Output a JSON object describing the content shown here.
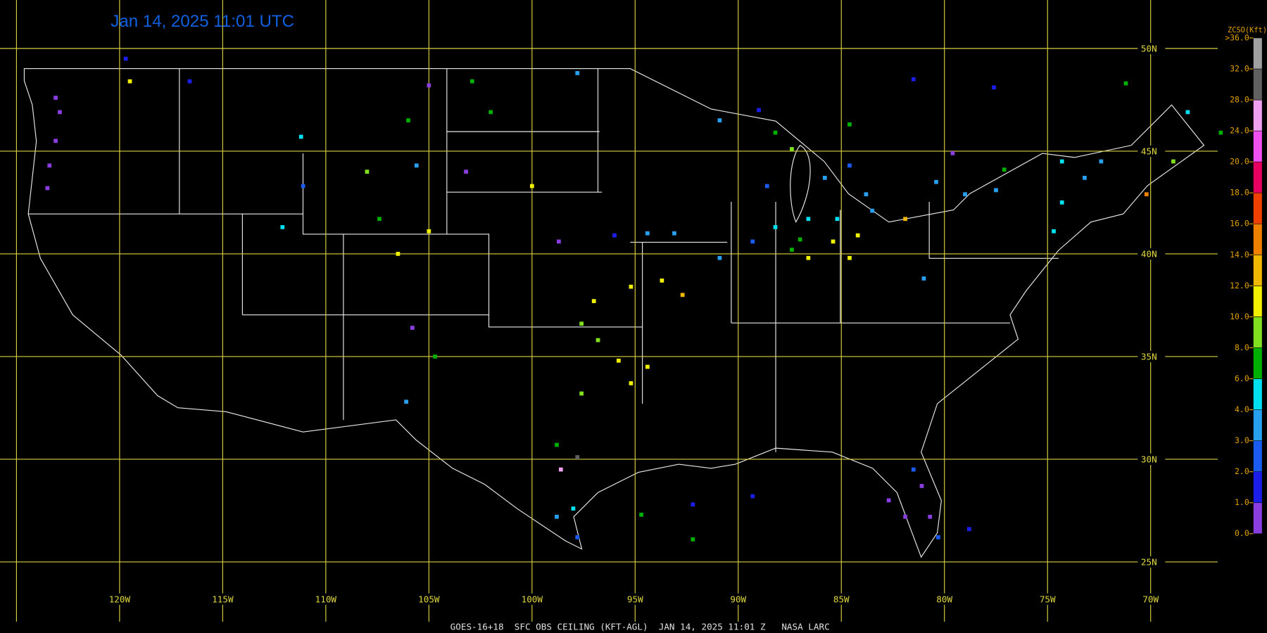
{
  "title": "Jan 14, 2025 11:01 UTC",
  "footer": "GOES-16+18  SFC OBS CEILING (KFT-AGL)  JAN 14, 2025 11:01 Z   NASA LARC",
  "map": {
    "lon_lines": [
      {
        "value": -125,
        "label": null
      },
      {
        "value": -120,
        "label": "120W"
      },
      {
        "value": -115,
        "label": "115W"
      },
      {
        "value": -110,
        "label": "110W"
      },
      {
        "value": -105,
        "label": "105W"
      },
      {
        "value": -100,
        "label": "100W"
      },
      {
        "value": -95,
        "label": "95W"
      },
      {
        "value": -90,
        "label": "90W"
      },
      {
        "value": -85,
        "label": "85W"
      },
      {
        "value": -80,
        "label": "80W"
      },
      {
        "value": -75,
        "label": "75W"
      },
      {
        "value": -70,
        "label": "70W"
      }
    ],
    "lat_lines": [
      {
        "value": 50,
        "label": "50N"
      },
      {
        "value": 45,
        "label": "45N"
      },
      {
        "value": 40,
        "label": "40N"
      },
      {
        "value": 35,
        "label": "35N"
      },
      {
        "value": 30,
        "label": "30N"
      },
      {
        "value": 25,
        "label": "25N"
      }
    ]
  },
  "colorbar": {
    "title": "ZCSO(Kft)",
    "ticks": [
      {
        "value": 0,
        "label": "0.0"
      },
      {
        "value": 1,
        "label": "1.0"
      },
      {
        "value": 2,
        "label": "2.0"
      },
      {
        "value": 3,
        "label": "3.0"
      },
      {
        "value": 4,
        "label": "4.0"
      },
      {
        "value": 6,
        "label": "6.0"
      },
      {
        "value": 8,
        "label": "8.0"
      },
      {
        "value": 10,
        "label": "10.0"
      },
      {
        "value": 12,
        "label": "12.0"
      },
      {
        "value": 14,
        "label": "14.0"
      },
      {
        "value": 16,
        "label": "16.0"
      },
      {
        "value": 18,
        "label": "18.0"
      },
      {
        "value": 20,
        "label": "20.0"
      },
      {
        "value": 24,
        "label": "24.0"
      },
      {
        "value": 28,
        "label": "28.0"
      },
      {
        "value": 32,
        "label": "32.0"
      },
      {
        "value": 36,
        "label": ">36.0"
      }
    ],
    "colors": [
      "#8a3ee0",
      "#1a1ee8",
      "#1a5cf0",
      "#28a0f0",
      "#00e0f0",
      "#00b000",
      "#80e020",
      "#f0f000",
      "#f0b800",
      "#f08000",
      "#f04000",
      "#e80060",
      "#f050f0",
      "#f0a0f0",
      "#606060",
      "#a0a0a0"
    ]
  },
  "stations": [
    [
      -123.1,
      47.6,
      0.5
    ],
    [
      -122.9,
      46.9,
      0.5
    ],
    [
      -123.1,
      45.5,
      0.8
    ],
    [
      -123.4,
      44.3,
      0.7
    ],
    [
      -123.5,
      43.2,
      0.5
    ],
    [
      -119.5,
      48.4,
      11
    ],
    [
      -119.7,
      49.5,
      1.5
    ],
    [
      -116.6,
      48.4,
      1.5
    ],
    [
      -111.2,
      45.7,
      5
    ],
    [
      -112.1,
      41.3,
      5
    ],
    [
      -111.1,
      43.3,
      2.5
    ],
    [
      -105.0,
      48.2,
      0.7
    ],
    [
      -106.0,
      46.5,
      7
    ],
    [
      -108.0,
      44.0,
      9
    ],
    [
      -105.6,
      44.3,
      3.5
    ],
    [
      -106.5,
      40.0,
      11
    ],
    [
      -105.0,
      41.1,
      11
    ],
    [
      -107.4,
      41.7,
      7
    ],
    [
      -103.2,
      44.0,
      0.7
    ],
    [
      -102.9,
      48.4,
      7
    ],
    [
      -102.0,
      46.9,
      7
    ],
    [
      -97.8,
      48.8,
      3.5
    ],
    [
      -100.0,
      43.3,
      11
    ],
    [
      -98.7,
      40.6,
      0.7
    ],
    [
      -96.0,
      40.9,
      1.5
    ],
    [
      -94.4,
      41.0,
      3.5
    ],
    [
      -93.1,
      41.0,
      3.5
    ],
    [
      -105.8,
      36.4,
      0.7
    ],
    [
      -104.7,
      35.0,
      7
    ],
    [
      -106.1,
      32.8,
      3.5
    ],
    [
      -97.0,
      37.7,
      11
    ],
    [
      -95.2,
      38.4,
      11
    ],
    [
      -93.7,
      38.7,
      11
    ],
    [
      -92.7,
      38.0,
      13
    ],
    [
      -97.6,
      36.6,
      9
    ],
    [
      -96.8,
      35.8,
      9
    ],
    [
      -95.8,
      34.8,
      11
    ],
    [
      -94.4,
      34.5,
      11
    ],
    [
      -95.2,
      33.7,
      11
    ],
    [
      -97.6,
      33.2,
      9
    ],
    [
      -98.8,
      30.7,
      7
    ],
    [
      -98.6,
      29.5,
      26
    ],
    [
      -97.8,
      30.1,
      30
    ],
    [
      -98.0,
      27.6,
      5
    ],
    [
      -97.8,
      26.2,
      2
    ],
    [
      -98.8,
      27.2,
      3.5
    ],
    [
      -94.7,
      27.3,
      7
    ],
    [
      -92.2,
      27.8,
      1.5
    ],
    [
      -92.2,
      26.1,
      7
    ],
    [
      -89.3,
      28.2,
      1.5
    ],
    [
      -90.9,
      39.8,
      3.5
    ],
    [
      -89.3,
      40.6,
      2.5
    ],
    [
      -88.2,
      41.3,
      5
    ],
    [
      -87.0,
      40.7,
      7
    ],
    [
      -86.6,
      39.8,
      11
    ],
    [
      -85.4,
      40.6,
      11
    ],
    [
      -84.6,
      39.8,
      11
    ],
    [
      -84.2,
      40.9,
      11
    ],
    [
      -87.4,
      40.2,
      7
    ],
    [
      -86.6,
      41.7,
      5
    ],
    [
      -85.2,
      41.7,
      5
    ],
    [
      -83.5,
      42.1,
      3.5
    ],
    [
      -81.9,
      41.7,
      13
    ],
    [
      -85.8,
      43.7,
      3.5
    ],
    [
      -84.6,
      44.3,
      2.5
    ],
    [
      -83.8,
      42.9,
      3.5
    ],
    [
      -87.4,
      45.1,
      9
    ],
    [
      -88.6,
      43.3,
      2.5
    ],
    [
      -88.2,
      45.9,
      7
    ],
    [
      -84.6,
      46.3,
      7
    ],
    [
      -90.9,
      46.5,
      3.5
    ],
    [
      -89.0,
      47.0,
      1.5
    ],
    [
      -80.4,
      43.5,
      3.5
    ],
    [
      -79.0,
      42.9,
      3.5
    ],
    [
      -77.5,
      43.1,
      3.5
    ],
    [
      -81.0,
      38.8,
      3.5
    ],
    [
      -77.1,
      44.1,
      7
    ],
    [
      -74.3,
      44.5,
      5
    ],
    [
      -73.2,
      43.7,
      3.5
    ],
    [
      -72.4,
      44.5,
      3.5
    ],
    [
      -74.3,
      42.5,
      5
    ],
    [
      -74.7,
      41.1,
      5
    ],
    [
      -70.2,
      42.9,
      14.5
    ],
    [
      -68.2,
      46.9,
      5
    ],
    [
      -68.9,
      44.5,
      9
    ],
    [
      -66.6,
      45.9,
      7
    ],
    [
      -79.6,
      44.9,
      0.7
    ],
    [
      -82.7,
      28.0,
      0.7
    ],
    [
      -81.9,
      27.2,
      0.7
    ],
    [
      -81.1,
      28.7,
      0.7
    ],
    [
      -80.7,
      27.2,
      0.7
    ],
    [
      -81.5,
      29.5,
      2
    ],
    [
      -80.3,
      26.2,
      2
    ],
    [
      -78.8,
      26.6,
      1.5
    ],
    [
      -77.6,
      48.1,
      1.5
    ],
    [
      -81.5,
      48.5,
      1.5
    ],
    [
      -71.2,
      48.3,
      7
    ]
  ]
}
